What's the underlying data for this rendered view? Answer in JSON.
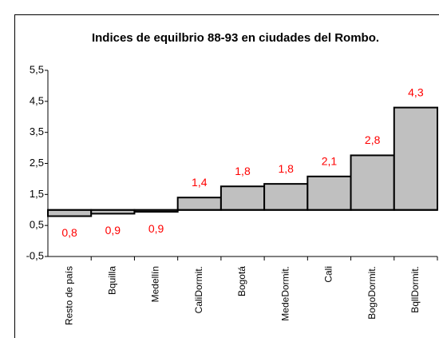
{
  "chart_data": {
    "type": "bar",
    "title": "Indices de equilbrio  88-93 en ciudades del Rombo.",
    "categories": [
      "Resto de país",
      "Bquilla",
      "Medellín",
      "CaliDormit.",
      "Bogotá",
      "MedeDormit.",
      "Cali",
      "BogoDormit.",
      "BqllDormit."
    ],
    "values": [
      0.8,
      0.88,
      0.94,
      1.4,
      1.76,
      1.84,
      2.08,
      2.76,
      4.3
    ],
    "value_labels": [
      "0,8",
      "0,9",
      "0,9",
      "1,4",
      "1,8",
      "1,8",
      "2,1",
      "2,8",
      "4,3"
    ],
    "base": 1,
    "color": "#c0c0c0",
    "label_color": "#ff0000",
    "ylim": [
      -0.5,
      5.5
    ],
    "yticks": [
      {
        "value": -0.5,
        "label": "-0,5"
      },
      {
        "value": 0.5,
        "label": "0,5"
      },
      {
        "value": 1.5,
        "label": "1,5"
      },
      {
        "value": 2.5,
        "label": "2,5"
      },
      {
        "value": 3.5,
        "label": "3,5"
      },
      {
        "value": 4.5,
        "label": "4,5"
      },
      {
        "value": 5.5,
        "label": "5,5"
      }
    ],
    "grid": false
  }
}
